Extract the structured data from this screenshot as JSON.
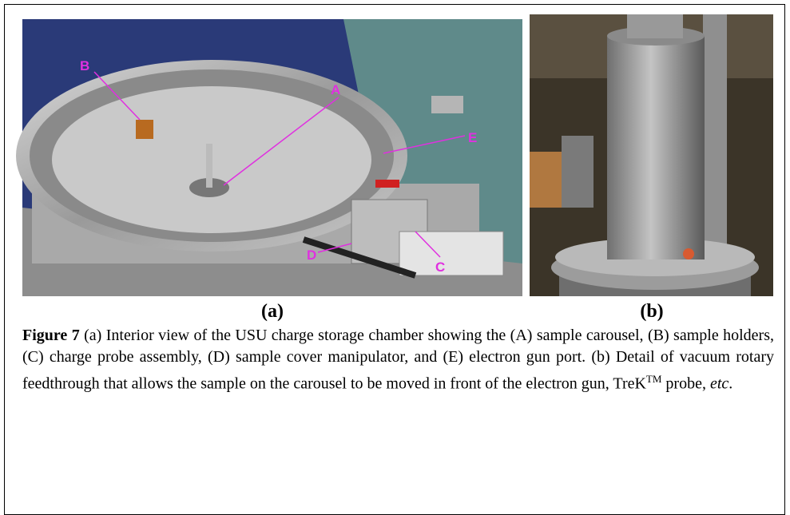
{
  "figure": {
    "panels": [
      {
        "label": "(a)",
        "annotations": [
          "A",
          "B",
          "C",
          "D",
          "E"
        ]
      },
      {
        "label": "(b)"
      }
    ],
    "caption": {
      "number": "Figure 7",
      "text": " (a) Interior view of the USU charge storage chamber showing the (A) sample carousel, (B) sample holders, (C) charge probe assembly, (D) sample cover manipulator, and (E) electron gun port.  (b) Detail of vacuum rotary feedthrough that allows the sample on the carousel to be moved in front of the electron gun, TreK",
      "superscript": "TM",
      "after": " probe, ",
      "italic": "etc",
      "end": "."
    }
  }
}
